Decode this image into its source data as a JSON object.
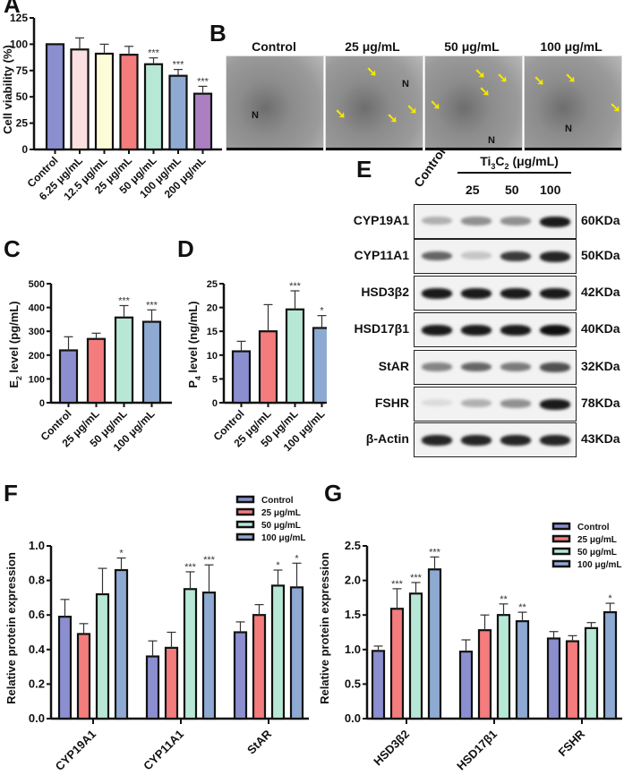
{
  "panels": {
    "A": "A",
    "B": "B",
    "C": "C",
    "D": "D",
    "E": "E",
    "F": "F",
    "G": "G"
  },
  "chart_data": [
    {
      "id": "A",
      "type": "bar",
      "title": "",
      "xlabel": "",
      "ylabel": "Cell viability (%)",
      "ylim": [
        0,
        125
      ],
      "yticks": [
        0,
        25,
        50,
        75,
        100,
        125
      ],
      "categories": [
        "Control",
        "6.25 μg/mL",
        "12.5 μg/mL",
        "25 μg/mL",
        "50 μg/mL",
        "100 μg/mL",
        "200 μg/mL"
      ],
      "values": [
        100,
        95,
        91,
        90,
        81,
        70,
        53
      ],
      "errors": [
        0,
        11,
        9,
        8,
        6,
        6,
        7
      ],
      "significance": [
        "",
        "",
        "",
        "",
        "***",
        "***",
        "***"
      ],
      "colors": [
        "#8b8fcf",
        "#fbdfe1",
        "#fcfcd9",
        "#f47c7c",
        "#b7e8d5",
        "#8eaad2",
        "#ab7fc2"
      ]
    },
    {
      "id": "C",
      "type": "bar",
      "ylabel": "E2 level (pg/mL)",
      "ylim": [
        0,
        500
      ],
      "yticks": [
        0,
        100,
        200,
        300,
        400,
        500
      ],
      "categories": [
        "Control",
        "25 μg/mL",
        "50 μg/mL",
        "100 μg/mL"
      ],
      "values": [
        220,
        268,
        358,
        340
      ],
      "errors": [
        57,
        24,
        50,
        50
      ],
      "significance": [
        "",
        "",
        "***",
        "***"
      ],
      "colors": [
        "#8b8fcf",
        "#f47c7c",
        "#b7e8d5",
        "#8eaad2"
      ]
    },
    {
      "id": "D",
      "type": "bar",
      "ylabel": "P4 level (ng/mL)",
      "ylim": [
        0,
        25
      ],
      "yticks": [
        0,
        5,
        10,
        15,
        20,
        25
      ],
      "categories": [
        "Control",
        "25 μg/mL",
        "50 μg/mL",
        "100 μg/mL"
      ],
      "values": [
        10.8,
        15.0,
        19.6,
        15.7
      ],
      "errors": [
        2.1,
        5.6,
        3.9,
        2.6
      ],
      "significance": [
        "",
        "",
        "***",
        "*"
      ],
      "colors": [
        "#8b8fcf",
        "#f47c7c",
        "#b7e8d5",
        "#8eaad2"
      ]
    },
    {
      "id": "F",
      "type": "bar",
      "ylabel": "Relative protein expression",
      "ylim": [
        0,
        1.0
      ],
      "yticks": [
        0.0,
        0.2,
        0.4,
        0.6,
        0.8,
        1.0
      ],
      "categories": [
        "CYP19A1",
        "CYP11A1",
        "StAR"
      ],
      "legend_position": "top-right",
      "series": [
        {
          "name": "Control",
          "color": "#8b8fcf",
          "values": [
            0.59,
            0.36,
            0.5
          ],
          "errors": [
            0.1,
            0.09,
            0.06
          ],
          "significance": [
            "",
            "",
            ""
          ]
        },
        {
          "name": "25 μg/mL",
          "color": "#f47c7c",
          "values": [
            0.49,
            0.41,
            0.6
          ],
          "errors": [
            0.06,
            0.09,
            0.06
          ],
          "significance": [
            "",
            "",
            ""
          ]
        },
        {
          "name": "50 μg/mL",
          "color": "#b7e8d5",
          "values": [
            0.72,
            0.75,
            0.77
          ],
          "errors": [
            0.15,
            0.1,
            0.09
          ],
          "significance": [
            "",
            "***",
            "*"
          ]
        },
        {
          "name": "100 μg/mL",
          "color": "#8eaad2",
          "values": [
            0.86,
            0.73,
            0.76
          ],
          "errors": [
            0.07,
            0.16,
            0.14
          ],
          "significance": [
            "*",
            "***",
            "*"
          ]
        }
      ]
    },
    {
      "id": "G",
      "type": "bar",
      "ylabel": "Relative protein expression",
      "ylim": [
        0,
        2.5
      ],
      "yticks": [
        0.0,
        0.5,
        1.0,
        1.5,
        2.0,
        2.5
      ],
      "categories": [
        "HSD3β2",
        "HSD17β1",
        "FSHR"
      ],
      "legend_position": "top-right",
      "series": [
        {
          "name": "Control",
          "color": "#8b8fcf",
          "values": [
            0.98,
            0.97,
            1.16
          ],
          "errors": [
            0.07,
            0.17,
            0.1
          ],
          "significance": [
            "",
            "",
            ""
          ]
        },
        {
          "name": "25 μg/mL",
          "color": "#f47c7c",
          "values": [
            1.59,
            1.28,
            1.12
          ],
          "errors": [
            0.29,
            0.22,
            0.08
          ],
          "significance": [
            "***",
            "",
            ""
          ]
        },
        {
          "name": "50 μg/mL",
          "color": "#b7e8d5",
          "values": [
            1.81,
            1.5,
            1.31
          ],
          "errors": [
            0.16,
            0.16,
            0.08
          ],
          "significance": [
            "***",
            "**",
            ""
          ]
        },
        {
          "name": "100 μg/mL",
          "color": "#8eaad2",
          "values": [
            2.16,
            1.41,
            1.54
          ],
          "errors": [
            0.18,
            0.13,
            0.13
          ],
          "significance": [
            "***",
            "**",
            "*"
          ]
        }
      ]
    }
  ],
  "tem": {
    "labels": [
      "Control",
      "25 μg/mL",
      "50 μg/mL",
      "100 μg/mL"
    ],
    "nucleus_label": "N"
  },
  "western_blot": {
    "control_label": "Control",
    "treatment_label": "Ti3C2 (μg/mL)",
    "doses": [
      "25",
      "50",
      "100"
    ],
    "rows": [
      {
        "protein": "CYP19A1",
        "kda": "60KDa",
        "intensity": [
          0.25,
          0.4,
          0.4,
          0.95
        ]
      },
      {
        "protein": "CYP11A1",
        "kda": "50KDa",
        "intensity": [
          0.6,
          0.15,
          0.8,
          0.9
        ]
      },
      {
        "protein": "HSD3β2",
        "kda": "42KDa",
        "intensity": [
          0.95,
          0.95,
          0.95,
          0.95
        ]
      },
      {
        "protein": "HSD17β1",
        "kda": "40KDa",
        "intensity": [
          0.95,
          0.95,
          0.95,
          1.0
        ]
      },
      {
        "protein": "StAR",
        "kda": "32KDa",
        "intensity": [
          0.45,
          0.6,
          0.5,
          0.7
        ]
      },
      {
        "protein": "FSHR",
        "kda": "78KDa",
        "intensity": [
          0.05,
          0.25,
          0.4,
          0.95
        ]
      },
      {
        "protein": "β-Actin",
        "kda": "43KDa",
        "intensity": [
          0.9,
          0.9,
          0.9,
          0.9
        ]
      }
    ]
  }
}
